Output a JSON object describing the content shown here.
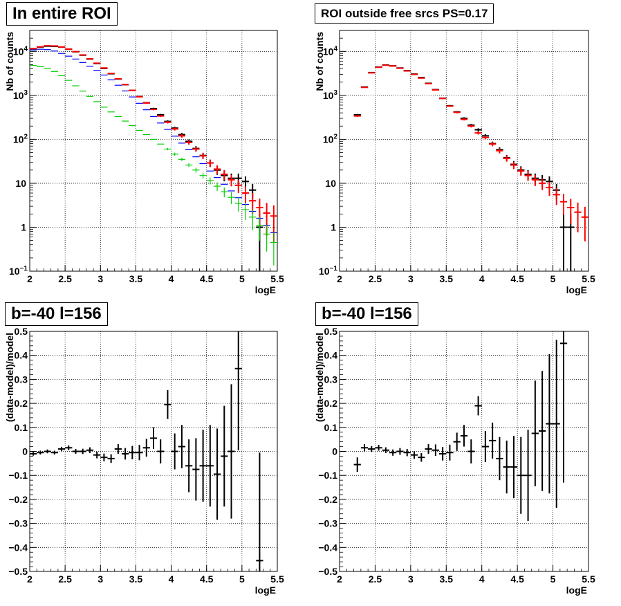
{
  "colors": {
    "data": "#000000",
    "total": "#ff0000",
    "blue": "#0000ff",
    "green": "#00cc00"
  },
  "chart_data": [
    {
      "type": "scatter",
      "title": "In entire ROI",
      "xlabel": "logE",
      "ylabel": "Nb of counts",
      "xlim": [
        2,
        5.5
      ],
      "ylim": [
        0.1,
        30000
      ],
      "yscale": "log",
      "grid": true,
      "x_ticks": [
        "2",
        "2.5",
        "3",
        "3.5",
        "4",
        "4.5",
        "5",
        "5.5"
      ],
      "y_ticks": [
        {
          "base": "10",
          "exp": "−1"
        },
        {
          "base": "1",
          "exp": ""
        },
        {
          "base": "10",
          "exp": ""
        },
        {
          "base": "10",
          "exp": "2"
        },
        {
          "base": "10",
          "exp": "3"
        },
        {
          "base": "10",
          "exp": "4"
        }
      ],
      "series": [
        {
          "color": "#000000",
          "x": [
            2.05,
            2.15,
            2.25,
            2.35,
            2.45,
            2.55,
            2.65,
            2.75,
            2.85,
            2.95,
            3.05,
            3.15,
            3.25,
            3.35,
            3.45,
            3.55,
            3.65,
            3.75,
            3.85,
            3.95,
            4.05,
            4.15,
            4.25,
            4.35,
            4.45,
            4.55,
            4.65,
            4.75,
            4.85,
            4.95,
            5.05,
            5.15,
            5.25,
            5.35,
            5.45
          ],
          "y": [
            11500,
            12500,
            13200,
            13000,
            12500,
            11200,
            9800,
            8200,
            6700,
            5300,
            4100,
            3100,
            2350,
            1750,
            1300,
            940,
            680,
            500,
            360,
            255,
            180,
            128,
            90,
            62,
            43,
            29,
            20,
            15,
            13,
            13,
            11,
            7,
            1,
            null,
            null
          ],
          "yerr_frac": [
            0.01,
            0.01,
            0.01,
            0.01,
            0.01,
            0.01,
            0.01,
            0.011,
            0.012,
            0.014,
            0.016,
            0.018,
            0.021,
            0.024,
            0.028,
            0.033,
            0.038,
            0.045,
            0.053,
            0.063,
            0.075,
            0.09,
            0.105,
            0.13,
            0.15,
            0.19,
            0.22,
            0.26,
            0.28,
            0.28,
            0.3,
            0.38,
            1.0,
            0,
            0
          ]
        },
        {
          "color": "#ff0000",
          "x": [
            2.05,
            2.15,
            2.25,
            2.35,
            2.45,
            2.55,
            2.65,
            2.75,
            2.85,
            2.95,
            3.05,
            3.15,
            3.25,
            3.35,
            3.45,
            3.55,
            3.65,
            3.75,
            3.85,
            3.95,
            4.05,
            4.15,
            4.25,
            4.35,
            4.45,
            4.55,
            4.65,
            4.75,
            4.85,
            4.95,
            5.05,
            5.15,
            5.25,
            5.35,
            5.45
          ],
          "y": [
            11600,
            12700,
            13500,
            13300,
            12600,
            11300,
            9900,
            8300,
            6800,
            5400,
            4200,
            3150,
            2380,
            1760,
            1300,
            930,
            670,
            480,
            340,
            245,
            172,
            120,
            85,
            60,
            42,
            29,
            21,
            16,
            12,
            9,
            6,
            4,
            2.8,
            2.1,
            1.8
          ],
          "yerr_frac": [
            0.01,
            0.01,
            0.01,
            0.01,
            0.01,
            0.01,
            0.01,
            0.011,
            0.012,
            0.014,
            0.016,
            0.018,
            0.021,
            0.024,
            0.028,
            0.033,
            0.039,
            0.046,
            0.054,
            0.064,
            0.076,
            0.09,
            0.11,
            0.13,
            0.15,
            0.19,
            0.22,
            0.25,
            0.29,
            0.33,
            0.41,
            0.5,
            0.6,
            0.7,
            0.75
          ]
        },
        {
          "color": "#0000ff",
          "x": [
            2.05,
            2.15,
            2.25,
            2.35,
            2.45,
            2.55,
            2.65,
            2.75,
            2.85,
            2.95,
            3.05,
            3.15,
            3.25,
            3.35,
            3.45,
            3.55,
            3.65,
            3.75,
            3.85,
            3.95,
            4.05,
            4.15,
            4.25,
            4.35,
            4.45,
            4.55,
            4.65,
            4.75,
            4.85,
            4.95,
            5.05,
            5.15,
            5.25,
            5.35,
            5.45
          ],
          "y": [
            10800,
            11200,
            11000,
            10200,
            9000,
            7800,
            6700,
            5600,
            4600,
            3700,
            2900,
            2250,
            1700,
            1260,
            920,
            660,
            470,
            330,
            235,
            168,
            118,
            82,
            58,
            40,
            28,
            19,
            13.5,
            9.5,
            6.7,
            4.7,
            3.3,
            2.3,
            1.6,
            1.1,
            0.75
          ],
          "yerr_frac": [
            0,
            0,
            0,
            0,
            0,
            0,
            0,
            0,
            0,
            0,
            0,
            0,
            0,
            0,
            0,
            0,
            0,
            0,
            0,
            0,
            0,
            0,
            0,
            0,
            0,
            0,
            0,
            0,
            0,
            0,
            0,
            0,
            0,
            0,
            0
          ]
        },
        {
          "color": "#00cc00",
          "x": [
            2.05,
            2.15,
            2.25,
            2.35,
            2.45,
            2.55,
            2.65,
            2.75,
            2.85,
            2.95,
            3.05,
            3.15,
            3.25,
            3.35,
            3.45,
            3.55,
            3.65,
            3.75,
            3.85,
            3.95,
            4.05,
            4.15,
            4.25,
            4.35,
            4.45,
            4.55,
            4.65,
            4.75,
            4.85,
            4.95,
            5.05,
            5.15,
            5.25,
            5.35,
            5.45
          ],
          "y": [
            4800,
            4500,
            4100,
            3500,
            2800,
            2200,
            1650,
            1250,
            950,
            720,
            540,
            420,
            330,
            260,
            205,
            160,
            128,
            100,
            78,
            60,
            46,
            35,
            26,
            20,
            15,
            11.5,
            8.6,
            6.4,
            4.8,
            3.5,
            2.5,
            1.7,
            1.1,
            0.7,
            0.45
          ],
          "yerr_frac": [
            0,
            0,
            0,
            0,
            0,
            0,
            0,
            0,
            0,
            0,
            0,
            0,
            0,
            0,
            0,
            0,
            0,
            0,
            0,
            0.06,
            0.08,
            0.09,
            0.11,
            0.13,
            0.15,
            0.18,
            0.22,
            0.25,
            0.3,
            0.35,
            0.42,
            0.5,
            0.55,
            0.6,
            0.7
          ]
        }
      ]
    },
    {
      "type": "scatter",
      "title": "ROI outside free srcs PS=0.17",
      "xlabel": "logE",
      "ylabel": "Nb of counts",
      "xlim": [
        2,
        5.5
      ],
      "ylim": [
        0.1,
        30000
      ],
      "yscale": "log",
      "grid": true,
      "x_ticks": [
        "2",
        "2.5",
        "3",
        "3.5",
        "4",
        "4.5",
        "5",
        "5.5"
      ],
      "y_ticks": [
        {
          "base": "10",
          "exp": "−1"
        },
        {
          "base": "1",
          "exp": ""
        },
        {
          "base": "10",
          "exp": ""
        },
        {
          "base": "10",
          "exp": "2"
        },
        {
          "base": "10",
          "exp": "3"
        },
        {
          "base": "10",
          "exp": "4"
        }
      ],
      "series": [
        {
          "color": "#000000",
          "x": [
            2.25,
            2.35,
            2.45,
            2.55,
            2.65,
            2.75,
            2.85,
            2.95,
            3.05,
            3.15,
            3.25,
            3.35,
            3.45,
            3.55,
            3.65,
            3.75,
            3.85,
            3.95,
            4.05,
            4.15,
            4.25,
            4.35,
            4.45,
            4.55,
            4.65,
            4.75,
            4.85,
            4.95,
            5.05,
            5.15,
            5.25,
            5.35
          ],
          "y": [
            360,
            1550,
            3300,
            4400,
            4900,
            4700,
            4200,
            3650,
            3050,
            2550,
            1880,
            1350,
            860,
            580,
            420,
            300,
            210,
            165,
            120,
            80,
            58,
            38,
            27,
            20,
            16,
            13,
            12,
            11,
            7,
            1,
            1,
            null
          ],
          "yerr_frac": [
            0.05,
            0.025,
            0.018,
            0.015,
            0.014,
            0.015,
            0.016,
            0.017,
            0.018,
            0.02,
            0.023,
            0.027,
            0.034,
            0.042,
            0.049,
            0.058,
            0.07,
            0.08,
            0.09,
            0.11,
            0.13,
            0.16,
            0.19,
            0.22,
            0.25,
            0.28,
            0.29,
            0.3,
            0.38,
            1.0,
            1.0,
            0
          ]
        },
        {
          "color": "#ff0000",
          "x": [
            2.25,
            2.35,
            2.45,
            2.55,
            2.65,
            2.75,
            2.85,
            2.95,
            3.05,
            3.15,
            3.25,
            3.35,
            3.45,
            3.55,
            3.65,
            3.75,
            3.85,
            3.95,
            4.05,
            4.15,
            4.25,
            4.35,
            4.45,
            4.55,
            4.65,
            4.75,
            4.85,
            4.95,
            5.05,
            5.15,
            5.25,
            5.35,
            5.45
          ],
          "y": [
            340,
            1520,
            3250,
            4350,
            4850,
            4650,
            4150,
            3600,
            3000,
            2480,
            1850,
            1330,
            850,
            570,
            410,
            285,
            200,
            140,
            110,
            78,
            55,
            37,
            26,
            19,
            15,
            12,
            10,
            8,
            5.5,
            3.8,
            2.8,
            2.2,
            1.7
          ],
          "yerr_frac": [
            0.05,
            0.025,
            0.018,
            0.015,
            0.014,
            0.015,
            0.016,
            0.017,
            0.018,
            0.02,
            0.023,
            0.027,
            0.034,
            0.042,
            0.049,
            0.058,
            0.07,
            0.08,
            0.09,
            0.11,
            0.13,
            0.16,
            0.19,
            0.22,
            0.25,
            0.28,
            0.3,
            0.35,
            0.42,
            0.5,
            0.58,
            0.65,
            0.72
          ]
        }
      ]
    },
    {
      "type": "scatter",
      "title": "b=-40 l=156",
      "xlabel": "logE",
      "ylabel": "(data-model)/model",
      "xlim": [
        2,
        5.5
      ],
      "ylim": [
        -0.5,
        0.5
      ],
      "yscale": "linear",
      "grid": true,
      "x_ticks": [
        "2",
        "2.5",
        "3",
        "3.5",
        "4",
        "4.5",
        "5",
        "5.5"
      ],
      "y_ticks": [
        "−0.5",
        "−0.4",
        "−0.3",
        "−0.2",
        "−0.1",
        "0",
        "0.1",
        "0.2",
        "0.3",
        "0.4",
        "0.5"
      ],
      "series": [
        {
          "color": "#000000",
          "x": [
            2.05,
            2.15,
            2.25,
            2.35,
            2.45,
            2.55,
            2.65,
            2.75,
            2.85,
            2.95,
            3.05,
            3.15,
            3.25,
            3.35,
            3.45,
            3.55,
            3.65,
            3.75,
            3.85,
            3.95,
            4.05,
            4.15,
            4.25,
            4.35,
            4.45,
            4.55,
            4.65,
            4.75,
            4.85,
            4.95,
            5.25
          ],
          "y": [
            -0.01,
            -0.005,
            0.0,
            -0.005,
            0.01,
            0.015,
            0.0,
            0.0,
            0.005,
            -0.015,
            -0.025,
            -0.03,
            0.01,
            -0.01,
            -0.005,
            -0.005,
            0.015,
            0.055,
            0.0,
            0.195,
            0.0,
            0.02,
            -0.06,
            -0.075,
            -0.06,
            -0.06,
            -0.095,
            -0.02,
            0.0,
            0.345,
            -0.455
          ],
          "yerr": [
            0.008,
            0.008,
            0.008,
            0.008,
            0.009,
            0.01,
            0.01,
            0.011,
            0.012,
            0.014,
            0.016,
            0.018,
            0.02,
            0.024,
            0.028,
            0.032,
            0.037,
            0.045,
            0.05,
            0.06,
            0.075,
            0.09,
            0.11,
            0.13,
            0.15,
            0.17,
            0.19,
            0.21,
            0.28,
            0.34,
            0.45
          ]
        }
      ]
    },
    {
      "type": "scatter",
      "title": "b=-40 l=156",
      "xlabel": "logE",
      "ylabel": "(data-model)/model",
      "xlim": [
        2,
        5.5
      ],
      "ylim": [
        -0.5,
        0.5
      ],
      "yscale": "linear",
      "grid": true,
      "x_ticks": [
        "2",
        "2.5",
        "3",
        "3.5",
        "4",
        "4.5",
        "5",
        "5.5"
      ],
      "y_ticks": [
        "−0.5",
        "−0.4",
        "−0.3",
        "−0.2",
        "−0.1",
        "0",
        "0.1",
        "0.2",
        "0.3",
        "0.4",
        "0.5"
      ],
      "series": [
        {
          "color": "#000000",
          "x": [
            2.25,
            2.35,
            2.45,
            2.55,
            2.65,
            2.75,
            2.85,
            2.95,
            3.05,
            3.15,
            3.25,
            3.35,
            3.45,
            3.55,
            3.65,
            3.75,
            3.85,
            3.95,
            4.05,
            4.15,
            4.25,
            4.35,
            4.45,
            4.55,
            4.65,
            4.75,
            4.85,
            4.95,
            5.05,
            5.15
          ],
          "y": [
            -0.055,
            0.015,
            0.01,
            0.015,
            0.005,
            -0.005,
            0.0,
            -0.005,
            -0.015,
            -0.025,
            0.01,
            0.005,
            -0.01,
            -0.005,
            0.04,
            0.065,
            0.0,
            0.19,
            0.02,
            0.045,
            -0.03,
            -0.065,
            -0.065,
            -0.1,
            -0.1,
            0.075,
            0.085,
            0.115,
            0.115,
            0.45
          ],
          "yerr": [
            0.03,
            0.015,
            0.012,
            0.012,
            0.012,
            0.013,
            0.014,
            0.015,
            0.016,
            0.018,
            0.02,
            0.024,
            0.028,
            0.033,
            0.038,
            0.045,
            0.05,
            0.04,
            0.065,
            0.075,
            0.09,
            0.11,
            0.13,
            0.16,
            0.19,
            0.22,
            0.25,
            0.29,
            0.35,
            0.58
          ]
        }
      ]
    }
  ]
}
